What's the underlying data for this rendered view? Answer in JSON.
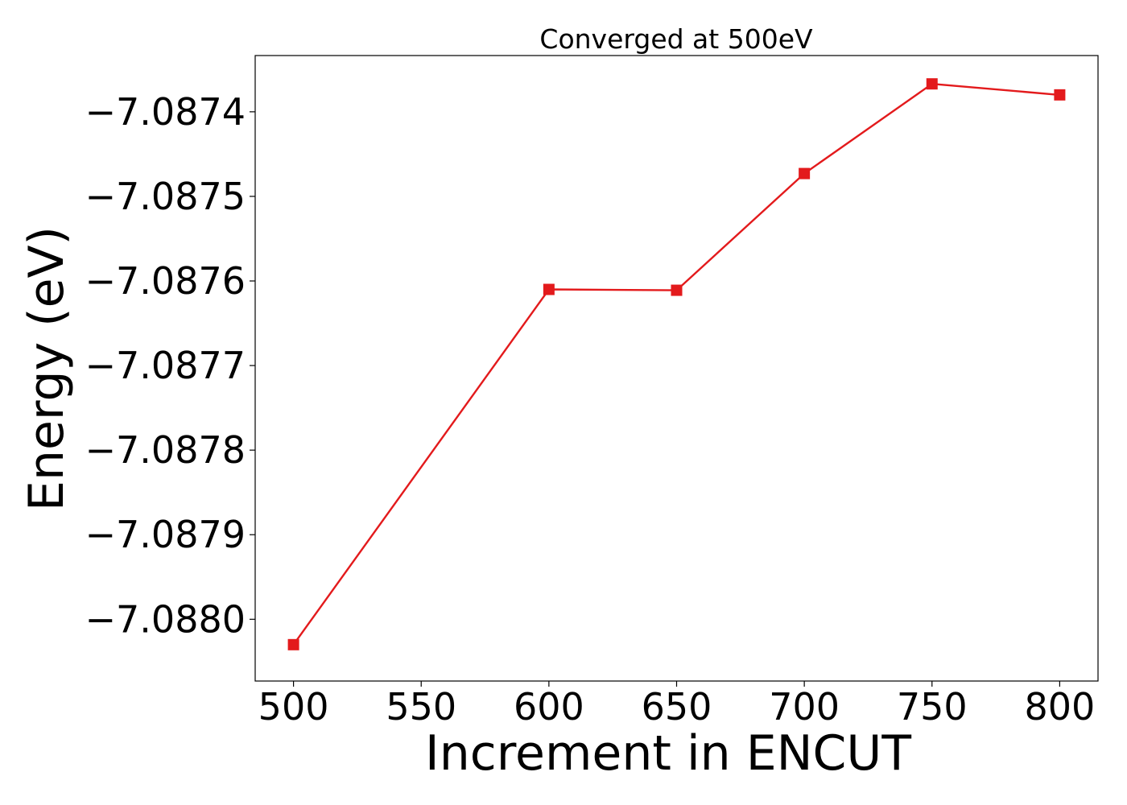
{
  "chart_data": {
    "type": "line",
    "title": "Converged at 500eV",
    "xlabel": "Increment in ENCUT",
    "ylabel": "Energy (eV)",
    "x": [
      500,
      600,
      650,
      700,
      750,
      800
    ],
    "series": [
      {
        "values": [
          -7.08803,
          -7.08761,
          -7.087611,
          -7.087473,
          -7.087367,
          -7.08738
        ],
        "color": "#e31a1c",
        "marker": "square"
      }
    ],
    "xlim": [
      485,
      815
    ],
    "ylim": [
      -7.088073,
      -7.0873335
    ],
    "xticks": [
      500,
      550,
      600,
      650,
      700,
      750,
      800
    ],
    "xtick_labels": [
      "500",
      "550",
      "600",
      "650",
      "700",
      "750",
      "800"
    ],
    "yticks": [
      -7.088,
      -7.0879,
      -7.0878,
      -7.0877,
      -7.0876,
      -7.0875,
      -7.0874
    ],
    "ytick_labels": [
      "−7.0880",
      "−7.0879",
      "−7.0878",
      "−7.0877",
      "−7.0876",
      "−7.0875",
      "−7.0874"
    ],
    "grid": false,
    "legend": false
  }
}
